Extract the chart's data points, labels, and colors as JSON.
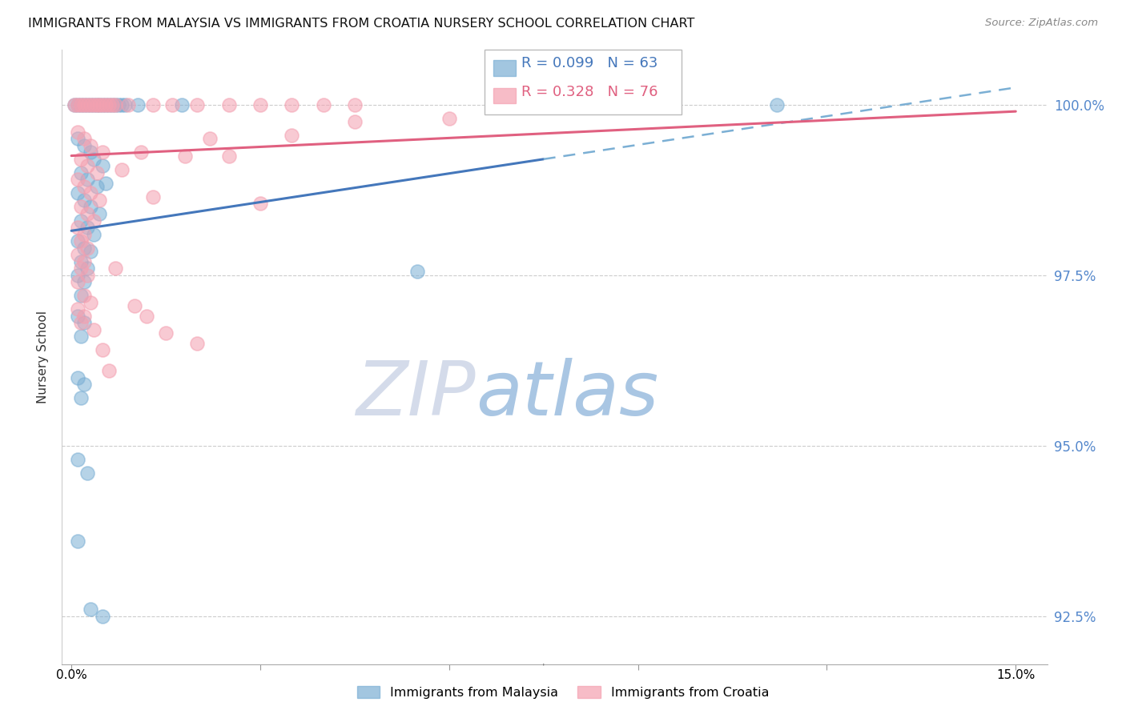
{
  "title": "IMMIGRANTS FROM MALAYSIA VS IMMIGRANTS FROM CROATIA NURSERY SCHOOL CORRELATION CHART",
  "source": "Source: ZipAtlas.com",
  "ylabel": "Nursery School",
  "y_min": 91.8,
  "y_max": 100.8,
  "x_min": -0.15,
  "x_max": 15.5,
  "malaysia_color": "#7BAFD4",
  "croatia_color": "#F4A0B0",
  "malaysia_label": "Immigrants from Malaysia",
  "croatia_label": "Immigrants from Croatia",
  "malaysia_scatter": [
    [
      0.05,
      100.0
    ],
    [
      0.1,
      100.0
    ],
    [
      0.15,
      100.0
    ],
    [
      0.2,
      100.0
    ],
    [
      0.25,
      100.0
    ],
    [
      0.3,
      100.0
    ],
    [
      0.35,
      100.0
    ],
    [
      0.4,
      100.0
    ],
    [
      0.45,
      100.0
    ],
    [
      0.5,
      100.0
    ],
    [
      0.55,
      100.0
    ],
    [
      0.6,
      100.0
    ],
    [
      0.65,
      100.0
    ],
    [
      0.7,
      100.0
    ],
    [
      0.75,
      100.0
    ],
    [
      0.8,
      100.0
    ],
    [
      0.85,
      100.0
    ],
    [
      1.05,
      100.0
    ],
    [
      1.75,
      100.0
    ],
    [
      0.1,
      99.5
    ],
    [
      0.2,
      99.4
    ],
    [
      0.3,
      99.3
    ],
    [
      0.35,
      99.2
    ],
    [
      0.5,
      99.1
    ],
    [
      0.15,
      99.0
    ],
    [
      0.25,
      98.9
    ],
    [
      0.4,
      98.8
    ],
    [
      0.55,
      98.85
    ],
    [
      0.1,
      98.7
    ],
    [
      0.2,
      98.6
    ],
    [
      0.3,
      98.5
    ],
    [
      0.45,
      98.4
    ],
    [
      0.15,
      98.3
    ],
    [
      0.25,
      98.2
    ],
    [
      0.35,
      98.1
    ],
    [
      0.1,
      98.0
    ],
    [
      0.2,
      97.9
    ],
    [
      0.3,
      97.85
    ],
    [
      0.15,
      97.7
    ],
    [
      0.25,
      97.6
    ],
    [
      0.1,
      97.5
    ],
    [
      0.2,
      97.4
    ],
    [
      0.15,
      97.2
    ],
    [
      0.1,
      96.9
    ],
    [
      0.2,
      96.8
    ],
    [
      0.15,
      96.6
    ],
    [
      0.1,
      96.0
    ],
    [
      0.2,
      95.9
    ],
    [
      0.15,
      95.7
    ],
    [
      0.1,
      94.8
    ],
    [
      0.25,
      94.6
    ],
    [
      0.1,
      93.6
    ],
    [
      0.3,
      92.6
    ],
    [
      0.5,
      92.5
    ],
    [
      5.5,
      97.55
    ],
    [
      11.2,
      100.0
    ]
  ],
  "croatia_scatter": [
    [
      0.05,
      100.0
    ],
    [
      0.1,
      100.0
    ],
    [
      0.15,
      100.0
    ],
    [
      0.2,
      100.0
    ],
    [
      0.25,
      100.0
    ],
    [
      0.3,
      100.0
    ],
    [
      0.35,
      100.0
    ],
    [
      0.4,
      100.0
    ],
    [
      0.45,
      100.0
    ],
    [
      0.5,
      100.0
    ],
    [
      0.55,
      100.0
    ],
    [
      0.6,
      100.0
    ],
    [
      0.65,
      100.0
    ],
    [
      0.7,
      100.0
    ],
    [
      0.1,
      99.6
    ],
    [
      0.2,
      99.5
    ],
    [
      0.3,
      99.4
    ],
    [
      0.5,
      99.3
    ],
    [
      0.15,
      99.2
    ],
    [
      0.25,
      99.1
    ],
    [
      0.4,
      99.0
    ],
    [
      0.1,
      98.9
    ],
    [
      0.2,
      98.8
    ],
    [
      0.3,
      98.7
    ],
    [
      0.45,
      98.6
    ],
    [
      0.15,
      98.5
    ],
    [
      0.25,
      98.4
    ],
    [
      0.35,
      98.3
    ],
    [
      0.1,
      98.2
    ],
    [
      0.2,
      98.1
    ],
    [
      0.15,
      98.0
    ],
    [
      0.25,
      97.9
    ],
    [
      0.1,
      97.8
    ],
    [
      0.2,
      97.7
    ],
    [
      0.15,
      97.6
    ],
    [
      0.25,
      97.5
    ],
    [
      0.1,
      97.4
    ],
    [
      0.2,
      97.2
    ],
    [
      0.3,
      97.1
    ],
    [
      0.1,
      97.0
    ],
    [
      0.2,
      96.9
    ],
    [
      0.15,
      96.8
    ],
    [
      0.35,
      96.7
    ],
    [
      0.5,
      96.4
    ],
    [
      0.6,
      96.1
    ],
    [
      1.3,
      98.65
    ],
    [
      2.5,
      99.25
    ],
    [
      3.0,
      98.55
    ],
    [
      4.5,
      99.75
    ],
    [
      6.0,
      99.8
    ],
    [
      7.2,
      100.0
    ],
    [
      0.7,
      97.6
    ],
    [
      1.0,
      97.05
    ],
    [
      1.2,
      96.9
    ],
    [
      1.5,
      96.65
    ],
    [
      2.0,
      96.5
    ],
    [
      0.8,
      99.05
    ],
    [
      1.1,
      99.3
    ],
    [
      2.2,
      99.5
    ],
    [
      3.5,
      99.55
    ],
    [
      1.8,
      99.25
    ],
    [
      0.9,
      100.0
    ],
    [
      1.3,
      100.0
    ],
    [
      1.6,
      100.0
    ],
    [
      2.0,
      100.0
    ],
    [
      2.5,
      100.0
    ],
    [
      3.0,
      100.0
    ],
    [
      3.5,
      100.0
    ],
    [
      4.0,
      100.0
    ],
    [
      4.5,
      100.0
    ]
  ],
  "malaysia_solid_x0": 0.0,
  "malaysia_solid_y0": 98.15,
  "malaysia_solid_x1": 7.5,
  "malaysia_solid_y1": 99.2,
  "malaysia_dash_x0": 7.5,
  "malaysia_dash_y0": 99.2,
  "malaysia_dash_x1": 15.0,
  "malaysia_dash_y1": 100.25,
  "croatia_x0": 0.0,
  "croatia_y0": 99.25,
  "croatia_x1": 15.0,
  "croatia_y1": 99.9,
  "ytick_vals": [
    92.5,
    95.0,
    97.5,
    100.0
  ],
  "xtick_vals": [
    0,
    3,
    6,
    9,
    12,
    15
  ],
  "grid_color": "#cccccc",
  "watermark_zip": "ZIP",
  "watermark_atlas": "atlas",
  "watermark_color_zip": "#d0d8e8",
  "watermark_color_atlas": "#a0c0e0"
}
